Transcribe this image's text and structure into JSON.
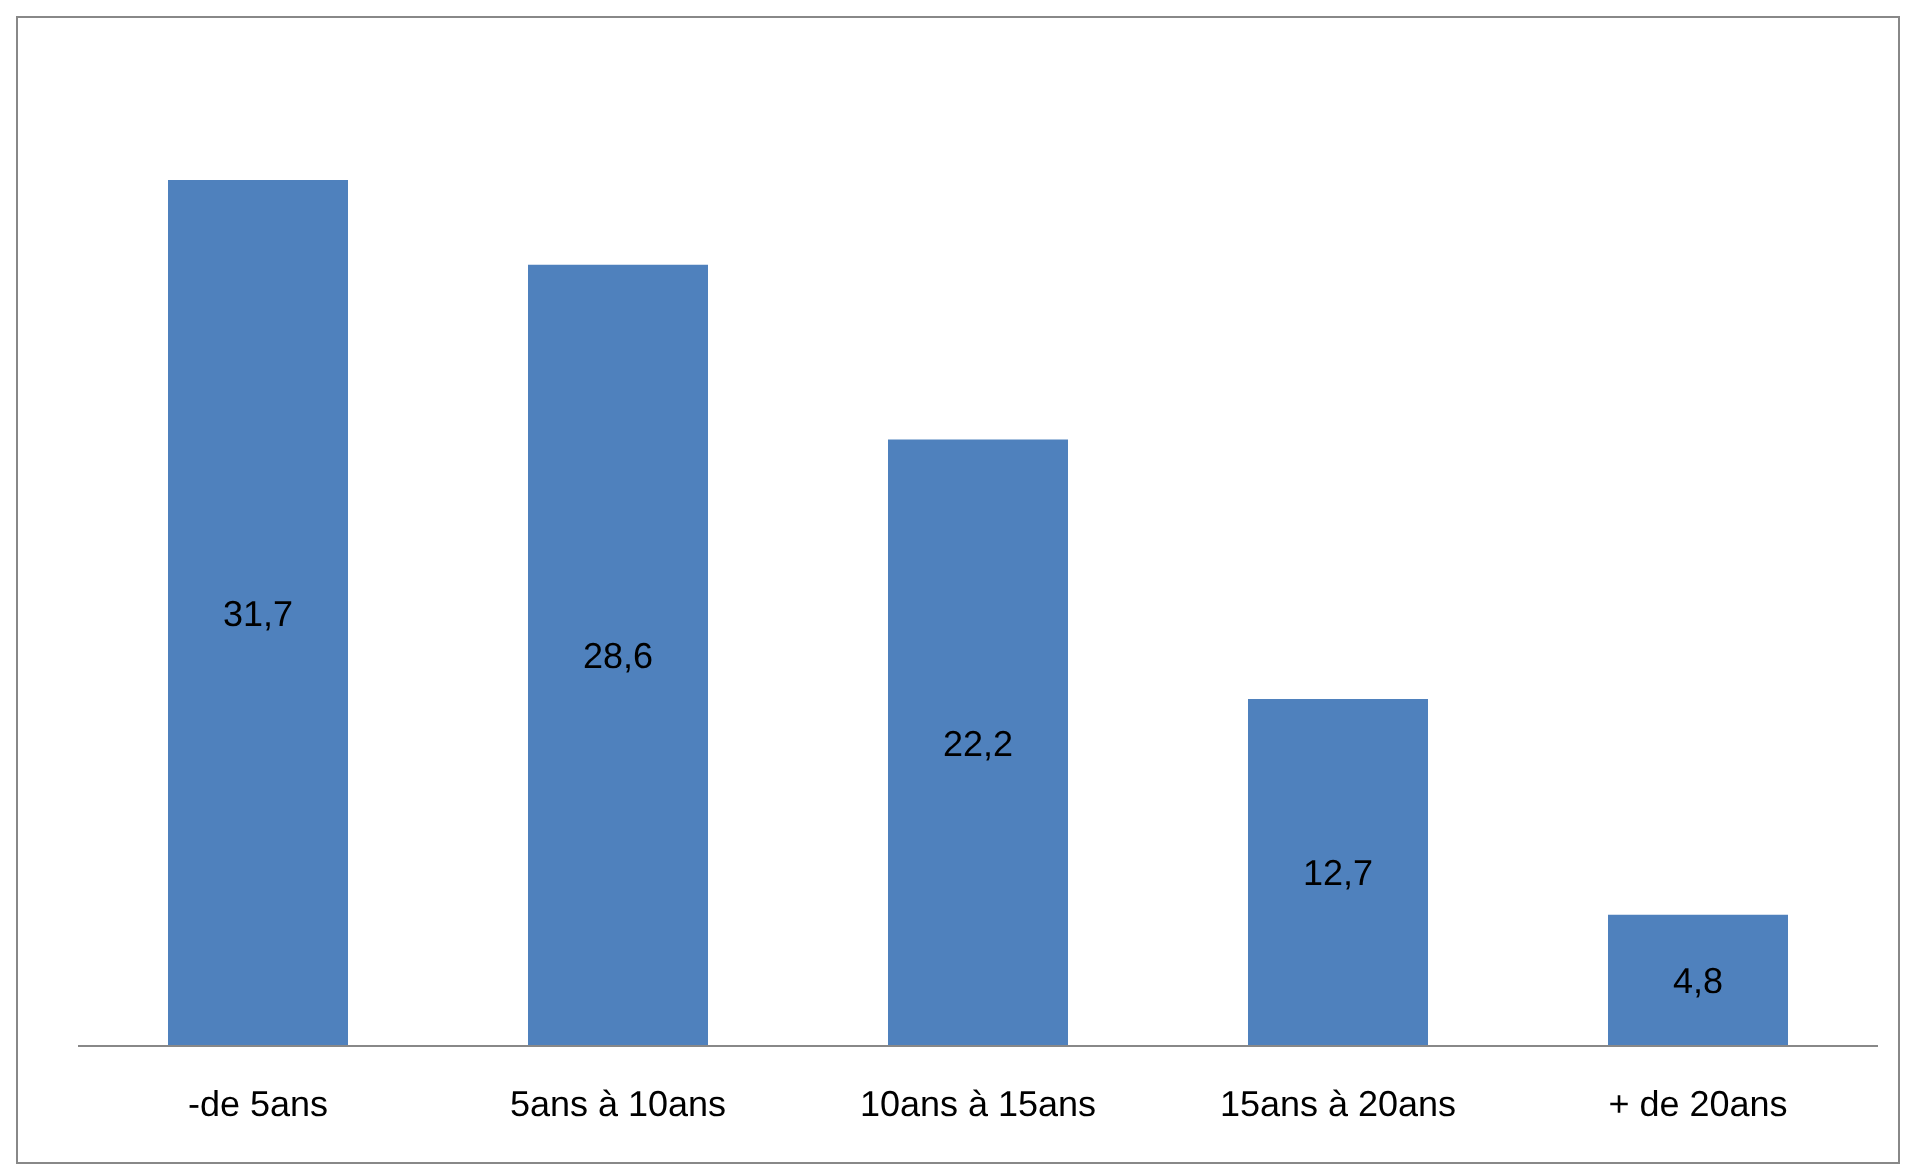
{
  "chart_data": {
    "type": "bar",
    "categories": [
      "-de 5ans",
      "5ans à 10ans",
      "10ans à 15ans",
      "15ans à 20ans",
      "+ de 20ans"
    ],
    "values": [
      31.7,
      28.6,
      22.2,
      12.7,
      4.8
    ],
    "value_labels": [
      "31,7",
      "28,6",
      "22,2",
      "12,7",
      "4,8"
    ],
    "color": "#4f81bd"
  }
}
